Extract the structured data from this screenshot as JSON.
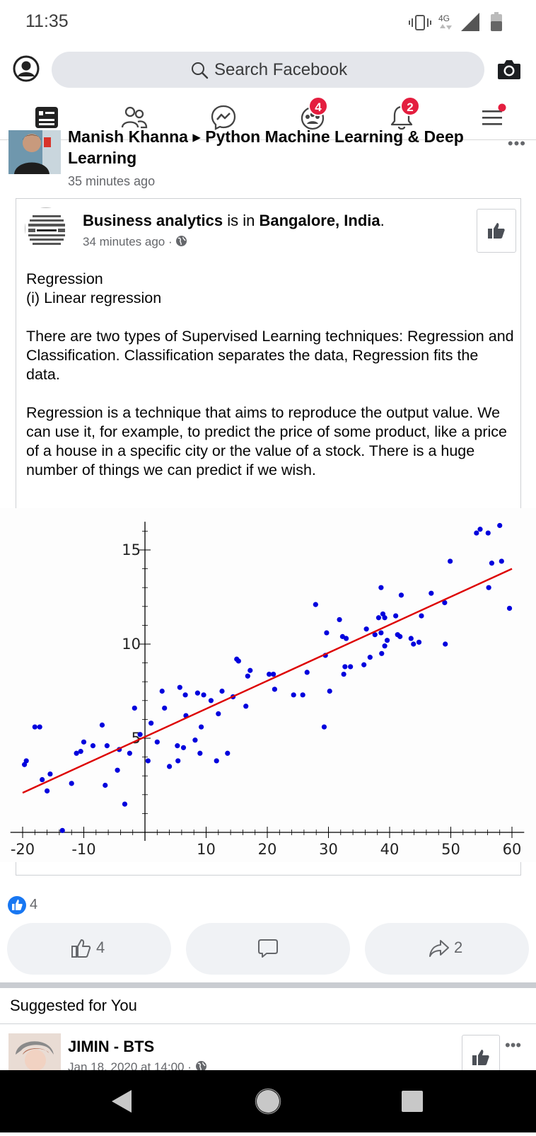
{
  "status_bar": {
    "time": "11:35",
    "network": "4G"
  },
  "search": {
    "placeholder": "Search Facebook"
  },
  "nav": {
    "badges": {
      "groups": "4",
      "notifications": "2"
    }
  },
  "post": {
    "author_line": "Manish Khanna ▸ Python Machine Learning & Deep",
    "author_line2": "Learning",
    "time": "35 minutes ago",
    "shared": {
      "page_name": "Business analytics",
      "is_in": " is in ",
      "location": "Bangalore, India",
      "period": ".",
      "time": "34 minutes ago",
      "dot": " · ",
      "paragraphs": [
        "Regression",
        "(i)  Linear regression",
        "There are two types of Supervised Learning techniques: Regression and Classification. Classification separates the data, Regression fits the data.",
        "Regression is a technique that aims to reproduce the output value. We can use it, for example, to predict the price of some product, like a price of a house in a specific city or the value of a stock. There is a huge number of things we can predict if we wish."
      ]
    },
    "reactions_count": "4",
    "actions": {
      "like_count": "4",
      "share_count": "2"
    }
  },
  "suggested": {
    "title": "Suggested for You",
    "item_name": "JIMIN - BTS",
    "item_time": "Jan 18, 2020 at 14:00 · "
  },
  "colors": {
    "brand": "#1877f2",
    "badge": "#e41e3f",
    "points": "#0000dd",
    "fit_line": "#dd0000"
  },
  "chart_data": {
    "type": "scatter",
    "title": "",
    "xlabel": "",
    "ylabel": "",
    "xlim": [
      -22,
      62
    ],
    "ylim": [
      -0.5,
      16.5
    ],
    "xticks": [
      -20,
      -10,
      10,
      20,
      30,
      40,
      50,
      60
    ],
    "yticks": [
      5,
      10,
      15
    ],
    "grid": false,
    "series": [
      {
        "type": "scatter",
        "points": [
          [
            -19.7,
            3.6
          ],
          [
            -19.4,
            3.8
          ],
          [
            -18,
            5.6
          ],
          [
            -17.2,
            5.6
          ],
          [
            -16.8,
            2.8
          ],
          [
            -16,
            2.2
          ],
          [
            -15.5,
            3.1
          ],
          [
            -13.5,
            0.1
          ],
          [
            -12,
            2.6
          ],
          [
            -11.2,
            4.2
          ],
          [
            -10.5,
            4.3
          ],
          [
            -10,
            4.8
          ],
          [
            -8.5,
            4.6
          ],
          [
            -7,
            5.7
          ],
          [
            -6.5,
            2.5
          ],
          [
            -6.2,
            4.6
          ],
          [
            -4.5,
            3.3
          ],
          [
            -4.2,
            4.4
          ],
          [
            -3.3,
            1.5
          ],
          [
            -2.5,
            4.2
          ],
          [
            -1.7,
            6.6
          ],
          [
            -0.8,
            5.2
          ],
          [
            0.5,
            3.8
          ],
          [
            1,
            5.8
          ],
          [
            2,
            4.8
          ],
          [
            2.8,
            7.5
          ],
          [
            3.2,
            6.6
          ],
          [
            4,
            3.5
          ],
          [
            5.3,
            4.6
          ],
          [
            5.7,
            7.7
          ],
          [
            5.4,
            3.8
          ],
          [
            6.3,
            4.5
          ],
          [
            6.7,
            6.2
          ],
          [
            6.6,
            7.3
          ],
          [
            8.2,
            4.9
          ],
          [
            8.6,
            7.4
          ],
          [
            9,
            4.2
          ],
          [
            9.6,
            7.3
          ],
          [
            9.2,
            5.6
          ],
          [
            10.8,
            7
          ],
          [
            11.7,
            3.8
          ],
          [
            12,
            6.3
          ],
          [
            12.6,
            7.5
          ],
          [
            13.5,
            4.2
          ],
          [
            14.4,
            7.2
          ],
          [
            15,
            9.2
          ],
          [
            15.3,
            9.1
          ],
          [
            16.5,
            6.7
          ],
          [
            16.8,
            8.3
          ],
          [
            17.2,
            8.6
          ],
          [
            20.3,
            8.4
          ],
          [
            21,
            8.4
          ],
          [
            21.2,
            7.6
          ],
          [
            24.3,
            7.3
          ],
          [
            25.8,
            7.3
          ],
          [
            26.5,
            8.5
          ],
          [
            27.9,
            12.1
          ],
          [
            29.3,
            5.6
          ],
          [
            29.5,
            9.4
          ],
          [
            29.7,
            10.6
          ],
          [
            30.2,
            7.5
          ],
          [
            31.8,
            11.3
          ],
          [
            32.3,
            10.4
          ],
          [
            32.5,
            8.4
          ],
          [
            32.7,
            8.8
          ],
          [
            32.9,
            10.3
          ],
          [
            33.6,
            8.8
          ],
          [
            35.8,
            8.9
          ],
          [
            36.2,
            10.8
          ],
          [
            36.8,
            9.3
          ],
          [
            37.6,
            10.5
          ],
          [
            38.2,
            11.4
          ],
          [
            38.6,
            10.6
          ],
          [
            38.6,
            13
          ],
          [
            38.7,
            9.5
          ],
          [
            38.9,
            11.6
          ],
          [
            39.2,
            11.4
          ],
          [
            39.2,
            9.9
          ],
          [
            39.6,
            10.2
          ],
          [
            41,
            11.5
          ],
          [
            41.3,
            10.5
          ],
          [
            41.7,
            10.4
          ],
          [
            41.9,
            12.6
          ],
          [
            43.5,
            10.3
          ],
          [
            43.9,
            10
          ],
          [
            44.8,
            10.1
          ],
          [
            45.2,
            11.5
          ],
          [
            46.8,
            12.7
          ],
          [
            49,
            12.2
          ],
          [
            49.1,
            10
          ],
          [
            49.9,
            14.4
          ],
          [
            54.2,
            15.9
          ],
          [
            54.8,
            16.1
          ],
          [
            56.1,
            15.9
          ],
          [
            56.2,
            13
          ],
          [
            56.7,
            14.3
          ],
          [
            58,
            16.3
          ],
          [
            58.3,
            14.4
          ],
          [
            59.6,
            11.9
          ]
        ]
      },
      {
        "type": "line",
        "name": "",
        "x": [
          -20,
          60
        ],
        "y": [
          2.1,
          14.0
        ]
      }
    ]
  }
}
